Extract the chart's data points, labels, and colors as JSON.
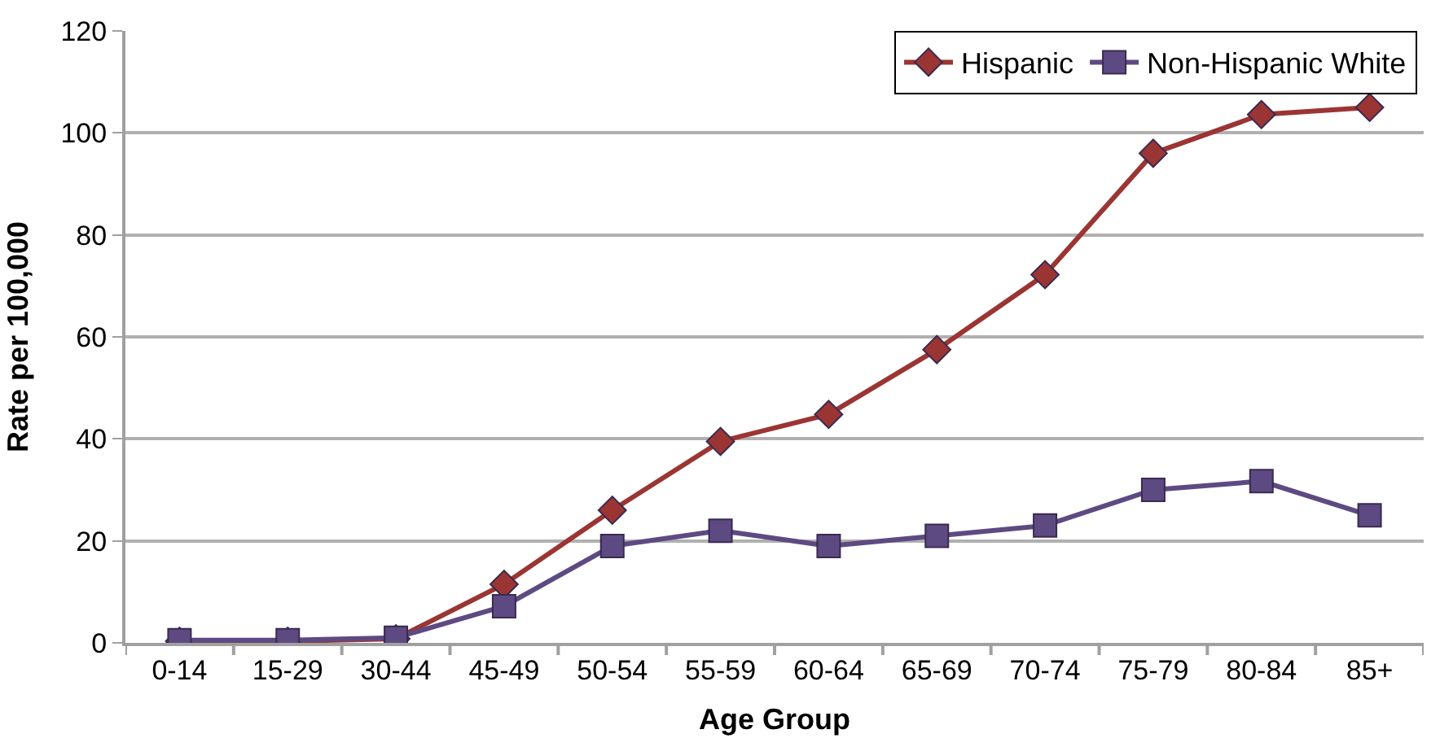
{
  "chart_data": {
    "type": "line",
    "xlabel": "Age Group",
    "ylabel": "Rate per 100,000",
    "categories": [
      "0-14",
      "15-29",
      "30-44",
      "45-49",
      "50-54",
      "55-59",
      "60-64",
      "65-69",
      "70-74",
      "75-79",
      "80-84",
      "85+"
    ],
    "series": [
      {
        "name": "Hispanic",
        "color": "#9b3533",
        "marker": "diamond",
        "values": [
          0.3,
          0.3,
          0.8,
          11.5,
          26,
          39.5,
          44.8,
          57.5,
          72.2,
          96,
          103.6,
          105
        ]
      },
      {
        "name": "Non-Hispanic White",
        "color": "#5e4a82",
        "marker": "square",
        "values": [
          0.5,
          0.5,
          1,
          7.2,
          19,
          22,
          19,
          21,
          23,
          30,
          31.7,
          25
        ]
      }
    ],
    "ylim": [
      0,
      120
    ],
    "yticks": [
      0,
      20,
      40,
      60,
      80,
      100,
      120
    ],
    "grid": "y",
    "legend": "top right",
    "line_style": "solid"
  }
}
